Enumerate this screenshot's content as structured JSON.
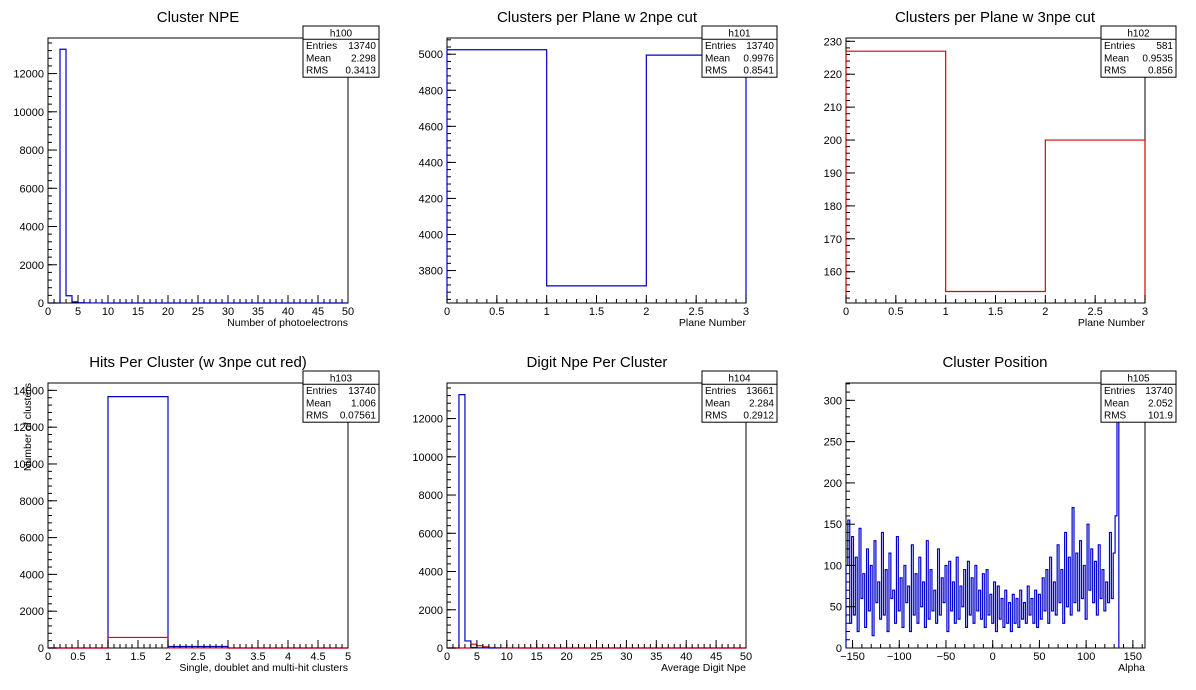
{
  "colors": {
    "blue": "#0000cc",
    "red": "#dd0000",
    "frame": "#000000",
    "background": "#ffffff"
  },
  "chart_data": [
    {
      "id": "h100",
      "type": "histogram",
      "title": "Cluster NPE",
      "xlabel": "Number of photoelectrons",
      "ylabel": "",
      "xlim": [
        0,
        50
      ],
      "ylim": [
        0,
        13860
      ],
      "xticks": [
        0,
        5,
        10,
        15,
        20,
        25,
        30,
        35,
        40,
        45,
        50
      ],
      "xticklabels": [
        "0",
        "5",
        "10",
        "15",
        "20",
        "25",
        "30",
        "35",
        "40",
        "45",
        "50"
      ],
      "yticks": [
        0,
        2000,
        4000,
        6000,
        8000,
        10000,
        12000
      ],
      "yticklabels": [
        "0",
        "2000",
        "4000",
        "6000",
        "8000",
        "10000",
        "12000"
      ],
      "stats": {
        "name": "h100",
        "rows": [
          [
            "Entries",
            "13740"
          ],
          [
            "Mean",
            "2.298"
          ],
          [
            "RMS",
            "0.3413"
          ]
        ]
      },
      "series": [
        {
          "color": "blue",
          "bin_width": 1,
          "x_start": 0,
          "values": [
            0,
            0,
            13270,
            380,
            60,
            15,
            5,
            3,
            2,
            1,
            1,
            0,
            0,
            0,
            0,
            0,
            0,
            0,
            0,
            0,
            0,
            0,
            0,
            0,
            0,
            0,
            0,
            0,
            0,
            0,
            0,
            0,
            0,
            0,
            0,
            0,
            0,
            0,
            0,
            0,
            0,
            0,
            0,
            0,
            0,
            0,
            0,
            0,
            0,
            0
          ]
        }
      ]
    },
    {
      "id": "h101",
      "type": "histogram",
      "title": "Clusters per Plane w 2npe cut",
      "xlabel": "Plane Number",
      "ylabel": "",
      "xlim": [
        0,
        3
      ],
      "ylim": [
        3620,
        5090
      ],
      "xticks": [
        0,
        0.5,
        1,
        1.5,
        2,
        2.5,
        3
      ],
      "xticklabels": [
        "0",
        "0.5",
        "1",
        "1.5",
        "2",
        "2.5",
        "3"
      ],
      "yticks": [
        3800,
        4000,
        4200,
        4400,
        4600,
        4800,
        5000
      ],
      "yticklabels": [
        "3800",
        "4000",
        "4200",
        "4400",
        "4600",
        "4800",
        "5000"
      ],
      "stats": {
        "name": "h101",
        "rows": [
          [
            "Entries",
            "13740"
          ],
          [
            "Mean",
            "0.9976"
          ],
          [
            "RMS",
            "0.8541"
          ]
        ]
      },
      "series": [
        {
          "color": "blue",
          "bin_width": 1,
          "x_start": 0,
          "values": [
            5025,
            3715,
            4995
          ]
        }
      ]
    },
    {
      "id": "h102",
      "type": "histogram",
      "title": "Clusters per Plane w 3npe cut",
      "xlabel": "Plane Number",
      "ylabel": "",
      "xlim": [
        0,
        3
      ],
      "ylim": [
        150.5,
        231
      ],
      "xticks": [
        0,
        0.5,
        1,
        1.5,
        2,
        2.5,
        3
      ],
      "xticklabels": [
        "0",
        "0.5",
        "1",
        "1.5",
        "2",
        "2.5",
        "3"
      ],
      "yticks": [
        160,
        170,
        180,
        190,
        200,
        210,
        220,
        230
      ],
      "yticklabels": [
        "160",
        "170",
        "180",
        "190",
        "200",
        "210",
        "220",
        "230"
      ],
      "stats": {
        "name": "h102",
        "rows": [
          [
            "Entries",
            "581"
          ],
          [
            "Mean",
            "0.9535"
          ],
          [
            "RMS",
            "0.856"
          ]
        ]
      },
      "series": [
        {
          "color": "red",
          "bin_width": 1,
          "x_start": 0,
          "values": [
            227,
            154,
            200
          ]
        }
      ]
    },
    {
      "id": "h103",
      "type": "histogram",
      "title": "Hits Per Cluster (w 3npe cut red)",
      "xlabel": "Single, doublet and multi-hit clusters",
      "ylabel": "Number of clusters",
      "xlim": [
        0,
        5
      ],
      "ylim": [
        0,
        14400
      ],
      "xticks": [
        0,
        0.5,
        1,
        1.5,
        2,
        2.5,
        3,
        3.5,
        4,
        4.5,
        5
      ],
      "xticklabels": [
        "0",
        "0.5",
        "1",
        "1.5",
        "2",
        "2.5",
        "3",
        "3.5",
        "4",
        "4.5",
        "5"
      ],
      "yticks": [
        0,
        2000,
        4000,
        6000,
        8000,
        10000,
        12000,
        14000
      ],
      "yticklabels": [
        "0",
        "2000",
        "4000",
        "6000",
        "8000",
        "10000",
        "12000",
        "14000"
      ],
      "stats": {
        "name": "h103",
        "rows": [
          [
            "Entries",
            "13740"
          ],
          [
            "Mean",
            "1.006"
          ],
          [
            "RMS",
            "0.07561"
          ]
        ]
      },
      "series": [
        {
          "color": "blue",
          "bin_width": 1,
          "x_start": 0,
          "values": [
            0,
            13660,
            80,
            0,
            0
          ]
        },
        {
          "color": "red",
          "bin_width": 1,
          "x_start": 0,
          "values": [
            0,
            575,
            6,
            0,
            0
          ]
        }
      ]
    },
    {
      "id": "h104",
      "type": "histogram",
      "title": "Digit Npe Per Cluster",
      "xlabel": "Average Digit Npe",
      "ylabel": "",
      "xlim": [
        0,
        50
      ],
      "ylim": [
        0,
        13860
      ],
      "xticks": [
        0,
        5,
        10,
        15,
        20,
        25,
        30,
        35,
        40,
        45,
        50
      ],
      "xticklabels": [
        "0",
        "5",
        "10",
        "15",
        "20",
        "25",
        "30",
        "35",
        "40",
        "45",
        "50"
      ],
      "yticks": [
        0,
        2000,
        4000,
        6000,
        8000,
        10000,
        12000
      ],
      "yticklabels": [
        "0",
        "2000",
        "4000",
        "6000",
        "8000",
        "10000",
        "12000"
      ],
      "stats": {
        "name": "h104",
        "rows": [
          [
            "Entries",
            "13661"
          ],
          [
            "Mean",
            "2.284"
          ],
          [
            "RMS",
            "0.2912"
          ]
        ]
      },
      "series": [
        {
          "color": "blue",
          "bin_width": 1,
          "x_start": 0,
          "values": [
            0,
            0,
            13250,
            370,
            30,
            8,
            2,
            1,
            0,
            0,
            0,
            0,
            0,
            0,
            0,
            0,
            0,
            0,
            0,
            0,
            0,
            0,
            0,
            0,
            0,
            0,
            0,
            0,
            0,
            0,
            0,
            0,
            0,
            0,
            0,
            0,
            0,
            0,
            0,
            0,
            0,
            0,
            0,
            0,
            0,
            0,
            0,
            0,
            0,
            0
          ]
        },
        {
          "color": "red",
          "bin_width": 1,
          "x_start": 0,
          "values": [
            0,
            0,
            0,
            0,
            200,
            120,
            60,
            30,
            15,
            8,
            4,
            2,
            1,
            1,
            0,
            0,
            0,
            0,
            0,
            0,
            0,
            0,
            0,
            0,
            0,
            0,
            0,
            0,
            0,
            0,
            0,
            0,
            0,
            0,
            0,
            0,
            0,
            0,
            0,
            0,
            0,
            0,
            0,
            0,
            0,
            0,
            0,
            0,
            0,
            0
          ]
        }
      ]
    },
    {
      "id": "h105",
      "type": "histogram",
      "title": "Cluster Position",
      "xlabel": "Alpha",
      "ylabel": "",
      "xlim": [
        -157,
        163
      ],
      "ylim": [
        0,
        321
      ],
      "xticks": [
        -150,
        -100,
        -50,
        0,
        50,
        100,
        150
      ],
      "xticklabels": [
        "−150",
        "−100",
        "−50",
        "0",
        "50",
        "100",
        "150"
      ],
      "yticks": [
        0,
        50,
        100,
        150,
        200,
        250,
        300
      ],
      "yticklabels": [
        "0",
        "50",
        "100",
        "150",
        "200",
        "250",
        "300"
      ],
      "stats": {
        "name": "h105",
        "rows": [
          [
            "Entries",
            "13740"
          ],
          [
            "Mean",
            "2.052"
          ],
          [
            "RMS",
            "101.9"
          ]
        ]
      },
      "series": [
        {
          "color": "blue",
          "bin_width": 2,
          "x_start": -157,
          "values": [
            100,
            155,
            30,
            135,
            40,
            110,
            20,
            145,
            60,
            90,
            25,
            120,
            45,
            100,
            15,
            130,
            55,
            80,
            35,
            140,
            40,
            95,
            20,
            115,
            60,
            70,
            30,
            135,
            45,
            85,
            25,
            100,
            55,
            75,
            20,
            125,
            40,
            90,
            30,
            110,
            50,
            80,
            25,
            130,
            35,
            95,
            45,
            70,
            30,
            120,
            40,
            85,
            55,
            100,
            20,
            105,
            45,
            80,
            30,
            110,
            35,
            75,
            50,
            95,
            25,
            105,
            40,
            85,
            30,
            100,
            45,
            70,
            35,
            90,
            25,
            95,
            40,
            65,
            30,
            80,
            20,
            75,
            35,
            60,
            25,
            70,
            30,
            55,
            20,
            65,
            30,
            60,
            25,
            70,
            35,
            55,
            30,
            75,
            40,
            60,
            30,
            70,
            25,
            65,
            35,
            85,
            45,
            95,
            30,
            110,
            45,
            80,
            40,
            125,
            55,
            95,
            30,
            140,
            50,
            110,
            40,
            170,
            55,
            115,
            45,
            130,
            60,
            100,
            35,
            150,
            70,
            120,
            55,
            105,
            40,
            125,
            60,
            95,
            45,
            80,
            55,
            140,
            60,
            115,
            160,
            275
          ]
        }
      ]
    }
  ]
}
